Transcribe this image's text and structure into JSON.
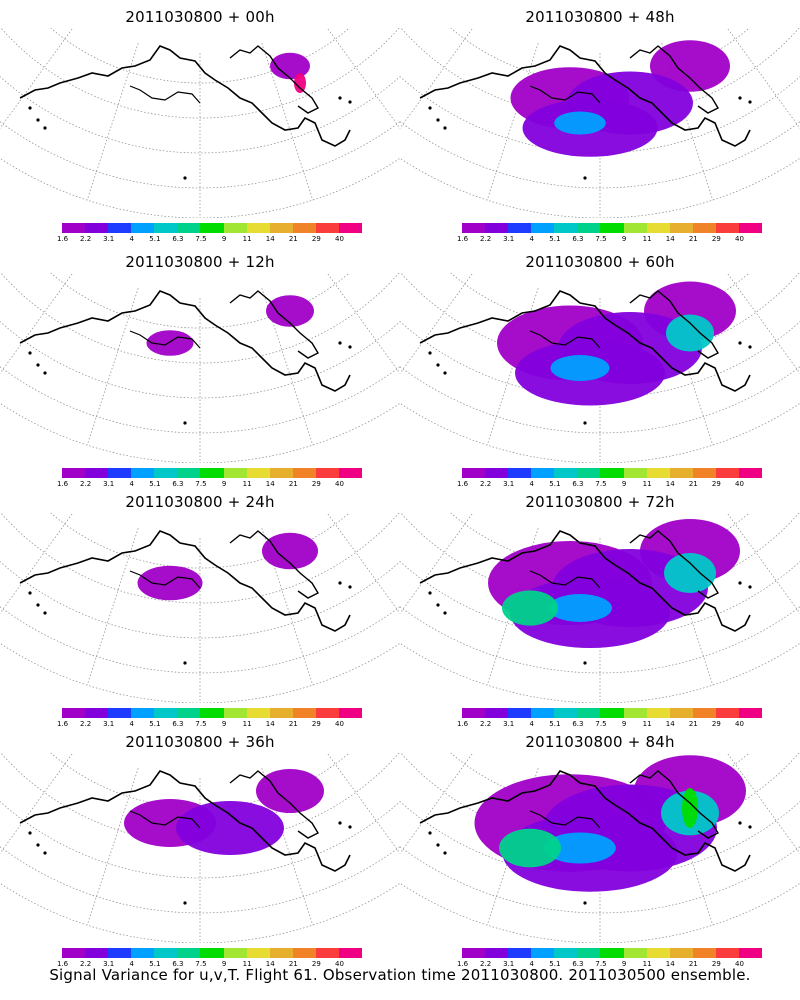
{
  "footer": "Signal Variance for u,v,T. Flight 61. Observation time 2011030800. 2011030500 ensemble.",
  "colorbar": {
    "labels": [
      "1.6",
      "2.2",
      "3.1",
      "4",
      "5.1",
      "6.3",
      "7.5",
      "9",
      "11",
      "14",
      "21",
      "29",
      "40"
    ],
    "colors": [
      "#a000c8",
      "#8200dc",
      "#1e3cff",
      "#00a0ff",
      "#00c8c8",
      "#00d28c",
      "#00dc00",
      "#a0e632",
      "#e6dc32",
      "#e6af2d",
      "#f08228",
      "#fa3c3c",
      "#f00082"
    ]
  },
  "panels": [
    {
      "title": "2011030800 + 00h",
      "intensity": 0.05
    },
    {
      "title": "2011030800 + 48h",
      "intensity": 0.55
    },
    {
      "title": "2011030800 + 12h",
      "intensity": 0.15
    },
    {
      "title": "2011030800 + 60h",
      "intensity": 0.7
    },
    {
      "title": "2011030800 + 24h",
      "intensity": 0.25
    },
    {
      "title": "2011030800 + 72h",
      "intensity": 0.8
    },
    {
      "title": "2011030800 + 36h",
      "intensity": 0.4
    },
    {
      "title": "2011030800 + 84h",
      "intensity": 0.95
    }
  ]
}
